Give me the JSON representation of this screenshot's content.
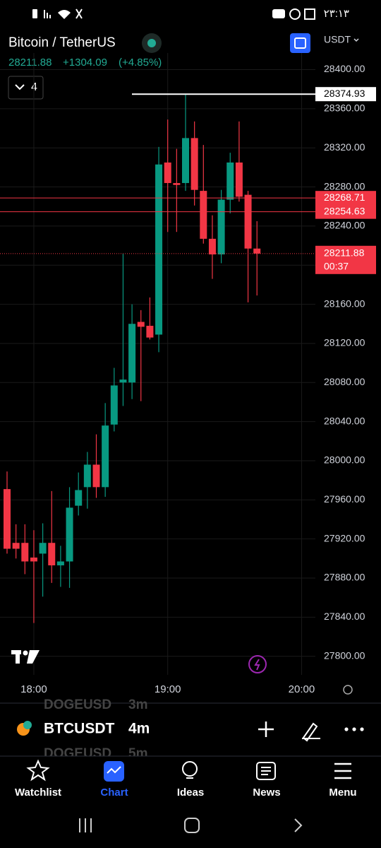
{
  "status_bar": {
    "time": "٢٣:١٣"
  },
  "header": {
    "symbol": "Bitcoin / TetherUS",
    "price": "28211.88",
    "change": "+1304.09",
    "change_pct": "(+4.85%)",
    "indicators_count": "4",
    "currency": "USDT"
  },
  "chart_data": {
    "type": "candlestick",
    "categories": [
      null,
      null,
      null,
      "18:00",
      null,
      null,
      null,
      null,
      null,
      null,
      null,
      null,
      null,
      null,
      null,
      null,
      null,
      null,
      "19:00",
      null,
      null,
      null,
      null,
      null,
      null,
      null,
      null,
      null,
      null,
      null,
      null,
      null,
      null,
      "20:00"
    ],
    "open": [
      27971,
      27916,
      27916,
      27901,
      27905,
      27916,
      27893,
      27897,
      27954,
      27973,
      27996,
      27973,
      28037,
      28080,
      28080,
      28142,
      28138,
      28129,
      28305,
      28284,
      28284,
      28330,
      28276,
      28227,
      28211,
      28267,
      28305,
      28272,
      28217,
      null,
      null,
      null,
      null,
      null
    ],
    "high": [
      27989,
      27935,
      27935,
      27929,
      27936,
      27969,
      27913,
      27973,
      27988,
      28009,
      28027,
      28059,
      28095,
      28212,
      28160,
      28154,
      28167,
      28321,
      28349,
      28319,
      28374.93,
      28347,
      28323,
      28251,
      28277,
      28315,
      28347,
      28276,
      28245,
      null,
      null,
      null,
      null,
      null
    ],
    "low": [
      27905,
      27900,
      27884,
      27834,
      27861,
      27875,
      27871,
      27870,
      27944,
      27951,
      27962,
      27963,
      28030,
      28056,
      28063,
      28061,
      28124,
      28111,
      28234,
      28234,
      28276,
      28261,
      28222,
      28186,
      28202,
      28253,
      28265,
      28162,
      28169,
      null,
      null,
      null,
      null,
      null
    ],
    "close": [
      27910,
      27910,
      27897,
      27897,
      27916,
      27893,
      27897,
      27952,
      27970,
      27996,
      27973,
      28036,
      28077,
      28083,
      28140,
      28137,
      28126,
      28303,
      28284,
      28282,
      28330,
      28277,
      28227,
      28211,
      28267,
      28305,
      28270,
      28217,
      28211.88,
      null,
      null,
      null,
      null,
      null
    ],
    "up_color": "#089981",
    "down_color": "#f23645",
    "ylim": [
      27781,
      28417
    ],
    "yticks": [
      {
        "value": 28400,
        "label": "28400.00"
      },
      {
        "value": 28360,
        "label": "28360.00"
      },
      {
        "value": 28320,
        "label": "28320.00"
      },
      {
        "value": 28280,
        "label": "28280.00"
      },
      {
        "value": 28240,
        "label": "28240.00"
      },
      {
        "value": 28200,
        "label": "28200.00"
      },
      {
        "value": 28160,
        "label": "28160.00"
      },
      {
        "value": 28120,
        "label": "28120.00"
      },
      {
        "value": 28080,
        "label": "28080.00"
      },
      {
        "value": 28040,
        "label": "28040.00"
      },
      {
        "value": 28000,
        "label": "28000.00"
      },
      {
        "value": 27960,
        "label": "27960.00"
      },
      {
        "value": 27920,
        "label": "27920.00"
      },
      {
        "value": 27880,
        "label": "27880.00"
      },
      {
        "value": 27840,
        "label": "27840.00"
      },
      {
        "value": 27800,
        "label": "27800.00"
      }
    ],
    "price_lines": [
      {
        "value": 28374.93,
        "color": "#ffffff"
      },
      {
        "value": 28268.71,
        "color": "#f23645"
      },
      {
        "value": 28254.63,
        "color": "#f23645"
      }
    ],
    "last_price": {
      "value": 28211.88,
      "countdown": "00:37",
      "color": "#f23645"
    },
    "grid": true
  },
  "symbol_bar": {
    "prev_symbol": "DOGEUSD",
    "prev_interval": "3m",
    "symbol": "BTCUSDT",
    "interval": "4m",
    "next_symbol": "DOGEUSD",
    "next_interval": "5m"
  },
  "nav": [
    {
      "label": "Watchlist"
    },
    {
      "label": "Chart"
    },
    {
      "label": "Ideas"
    },
    {
      "label": "News"
    },
    {
      "label": "Menu"
    }
  ]
}
